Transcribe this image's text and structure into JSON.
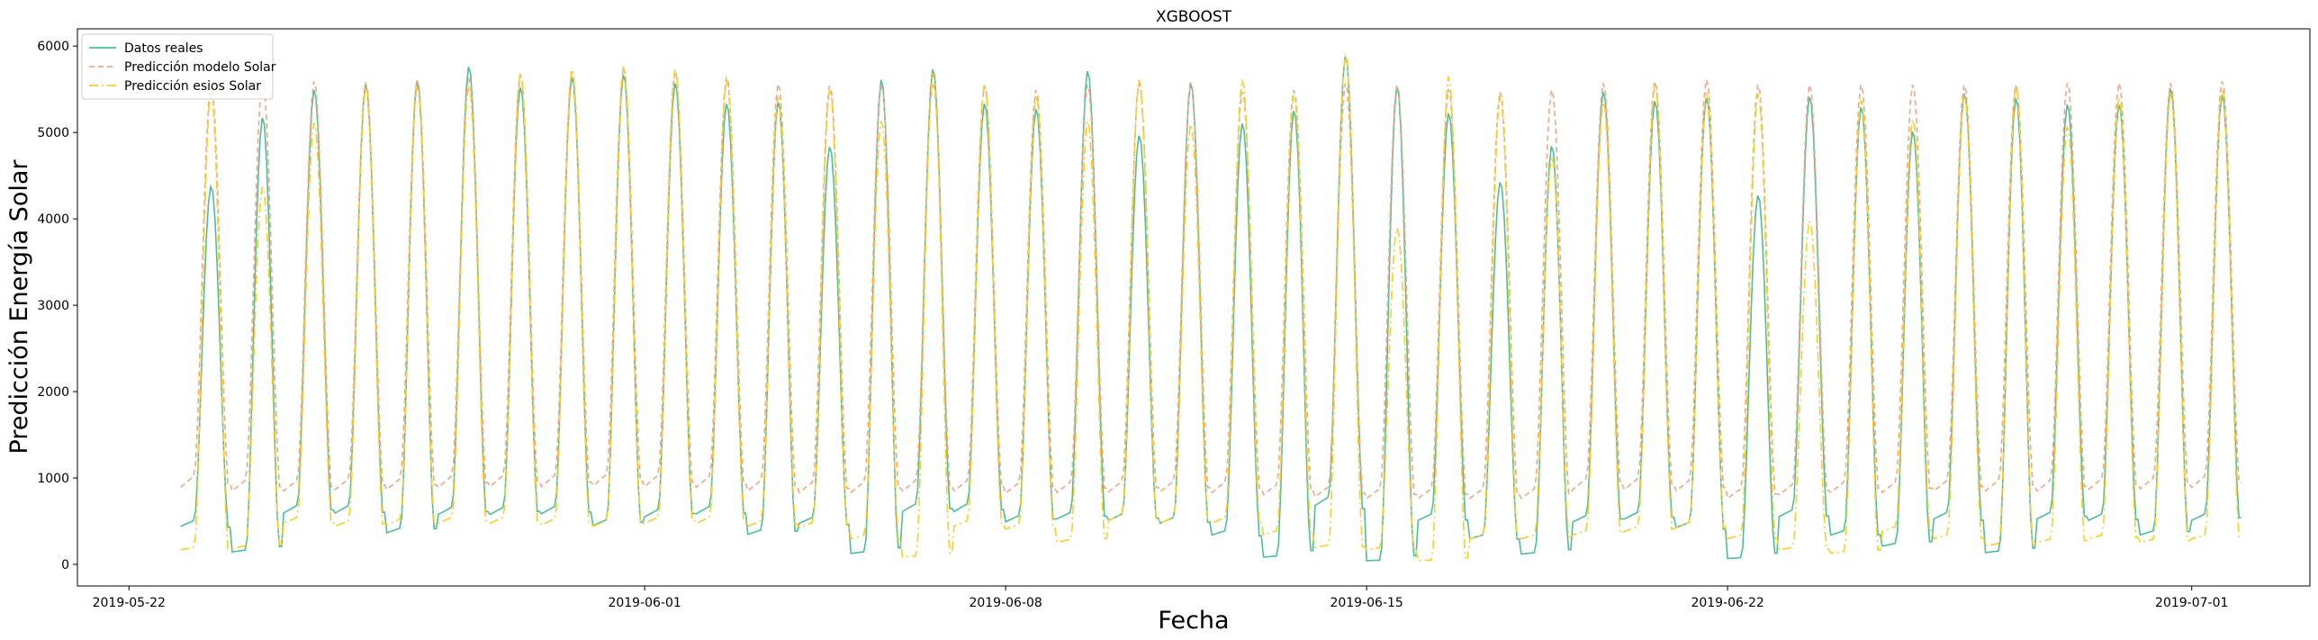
{
  "chart_data": {
    "type": "line",
    "title": "XGBOOST",
    "xlabel": "Fecha",
    "ylabel": "Predicción Energía Solar",
    "xlim": [
      "2019-05-21T00:00",
      "2019-07-03T07:00"
    ],
    "ylim": [
      -250,
      6200
    ],
    "x_ticks": [
      "2019-05-22",
      "2019-06-01",
      "2019-06-08",
      "2019-06-15",
      "2019-06-22",
      "2019-07-01"
    ],
    "y_ticks": [
      0,
      1000,
      2000,
      3000,
      4000,
      5000,
      6000
    ],
    "grid": false,
    "legend_position": "upper-left",
    "x_start": "2019-05-23",
    "x_end": "2019-07-02",
    "series": [
      {
        "name": "Datos reales",
        "color": "#4cbf9a",
        "style": "solid",
        "daily_peak": [
          4380,
          5180,
          5500,
          5560,
          5600,
          5770,
          5530,
          5650,
          5680,
          5580,
          5340,
          5360,
          4840,
          5620,
          5740,
          5340,
          5280,
          5720,
          4970,
          5580,
          5110,
          5260,
          5890,
          5540,
          5230,
          4430,
          4850,
          5480,
          5370,
          5410,
          4280,
          5420,
          5300,
          5020,
          5460,
          5410,
          5330,
          5330,
          5520,
          5440
        ],
        "daily_night": [
          520,
          170,
          700,
          700,
          430,
          680,
          680,
          690,
          530,
          650,
          690,
          410,
          560,
          150,
          720,
          720,
          580,
          620,
          600,
          560,
          400,
          100,
          800,
          50,
          600,
          350,
          140,
          580,
          620,
          500,
          80,
          650,
          400,
          250,
          620,
          160,
          620,
          600,
          400,
          600
        ]
      },
      {
        "name": "Predicción modelo Solar",
        "color": "#f2a687",
        "style": "dashed",
        "daily_peak": [
          5550,
          5620,
          5600,
          5590,
          5620,
          5650,
          5680,
          5720,
          5760,
          5720,
          5650,
          5570,
          5550,
          5560,
          5590,
          5550,
          5500,
          5560,
          5580,
          5590,
          5480,
          5500,
          5580,
          5560,
          5510,
          5480,
          5500,
          5580,
          5600,
          5620,
          5560,
          5560,
          5560,
          5560,
          5560,
          5560,
          5580,
          5580,
          5580,
          5600
        ],
        "daily_night": [
          1050,
          1000,
          1000,
          1020,
          1020,
          1050,
          1060,
          1060,
          1070,
          1060,
          1050,
          1000,
          980,
          980,
          1000,
          1000,
          970,
          980,
          990,
          990,
          980,
          950,
          920,
          900,
          900,
          900,
          900,
          1020,
          1020,
          1000,
          900,
          950,
          980,
          980,
          1000,
          1000,
          1000,
          1020,
          1030,
          1050
        ]
      },
      {
        "name": "Predicción esios Solar",
        "color": "#ffcc1f",
        "style": "dashdot",
        "daily_peak": [
          5480,
          4380,
          5120,
          5540,
          5540,
          5550,
          5700,
          5740,
          5770,
          5740,
          5620,
          5420,
          5500,
          5140,
          5700,
          5560,
          5440,
          5140,
          5620,
          5100,
          5620,
          5440,
          5920,
          3900,
          5660,
          5420,
          4730,
          5360,
          5560,
          5470,
          5460,
          3980,
          5390,
          5160,
          5440,
          5540,
          5080,
          5410,
          5470,
          5520
        ],
        "daily_night": [
          200,
          220,
          560,
          520,
          540,
          560,
          560,
          540,
          520,
          560,
          560,
          520,
          500,
          350,
          100,
          520,
          480,
          300,
          600,
          560,
          560,
          400,
          230,
          200,
          50,
          350,
          350,
          400,
          450,
          500,
          350,
          200,
          150,
          450,
          350,
          250,
          300,
          350,
          300,
          350
        ]
      }
    ]
  }
}
